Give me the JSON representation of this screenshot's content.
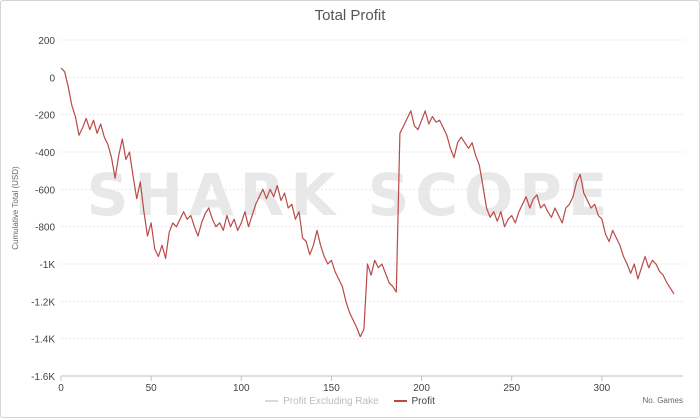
{
  "chart_data": {
    "type": "line",
    "title": "Total Profit",
    "xlabel": "No. Games",
    "ylabel": "Cumulative Total (USD)",
    "xlim": [
      0,
      345
    ],
    "ylim": [
      -1600,
      200
    ],
    "xticks": [
      0,
      50,
      100,
      150,
      200,
      250,
      300
    ],
    "yticks": [
      200,
      0,
      -200,
      -400,
      -600,
      -800,
      -1000,
      -1200,
      -1400,
      -1600
    ],
    "ytick_labels": [
      "200",
      "0",
      "-200",
      "-400",
      "-600",
      "-800",
      "-1K",
      "-1.2K",
      "-1.4K",
      "-1.6K"
    ],
    "grid": true,
    "legend_position": "bottom-center",
    "series": [
      {
        "name": "Profit Excluding Rake",
        "color": "#d9d9d9",
        "hidden": true,
        "points": []
      },
      {
        "name": "Profit",
        "color": "#b94a48",
        "points": [
          [
            0,
            50
          ],
          [
            2,
            30
          ],
          [
            4,
            -50
          ],
          [
            6,
            -150
          ],
          [
            8,
            -210
          ],
          [
            10,
            -310
          ],
          [
            12,
            -270
          ],
          [
            14,
            -220
          ],
          [
            16,
            -280
          ],
          [
            18,
            -230
          ],
          [
            20,
            -300
          ],
          [
            22,
            -250
          ],
          [
            24,
            -320
          ],
          [
            26,
            -360
          ],
          [
            28,
            -430
          ],
          [
            30,
            -540
          ],
          [
            32,
            -420
          ],
          [
            34,
            -330
          ],
          [
            36,
            -440
          ],
          [
            38,
            -400
          ],
          [
            40,
            -530
          ],
          [
            42,
            -650
          ],
          [
            44,
            -560
          ],
          [
            46,
            -720
          ],
          [
            48,
            -850
          ],
          [
            50,
            -780
          ],
          [
            52,
            -920
          ],
          [
            54,
            -960
          ],
          [
            56,
            -900
          ],
          [
            58,
            -970
          ],
          [
            60,
            -830
          ],
          [
            62,
            -780
          ],
          [
            64,
            -800
          ],
          [
            66,
            -760
          ],
          [
            68,
            -720
          ],
          [
            70,
            -760
          ],
          [
            72,
            -740
          ],
          [
            74,
            -800
          ],
          [
            76,
            -850
          ],
          [
            78,
            -780
          ],
          [
            80,
            -730
          ],
          [
            82,
            -700
          ],
          [
            84,
            -760
          ],
          [
            86,
            -800
          ],
          [
            88,
            -780
          ],
          [
            90,
            -820
          ],
          [
            92,
            -740
          ],
          [
            94,
            -800
          ],
          [
            96,
            -760
          ],
          [
            98,
            -820
          ],
          [
            100,
            -780
          ],
          [
            102,
            -720
          ],
          [
            104,
            -800
          ],
          [
            106,
            -740
          ],
          [
            108,
            -680
          ],
          [
            110,
            -640
          ],
          [
            112,
            -600
          ],
          [
            114,
            -650
          ],
          [
            116,
            -600
          ],
          [
            118,
            -640
          ],
          [
            120,
            -580
          ],
          [
            122,
            -660
          ],
          [
            124,
            -620
          ],
          [
            126,
            -700
          ],
          [
            128,
            -680
          ],
          [
            130,
            -760
          ],
          [
            132,
            -720
          ],
          [
            134,
            -860
          ],
          [
            136,
            -880
          ],
          [
            138,
            -950
          ],
          [
            140,
            -900
          ],
          [
            142,
            -820
          ],
          [
            144,
            -900
          ],
          [
            146,
            -960
          ],
          [
            148,
            -1000
          ],
          [
            150,
            -980
          ],
          [
            152,
            -1040
          ],
          [
            154,
            -1080
          ],
          [
            156,
            -1120
          ],
          [
            158,
            -1200
          ],
          [
            160,
            -1260
          ],
          [
            162,
            -1300
          ],
          [
            164,
            -1340
          ],
          [
            166,
            -1390
          ],
          [
            168,
            -1350
          ],
          [
            170,
            -1000
          ],
          [
            172,
            -1060
          ],
          [
            174,
            -980
          ],
          [
            176,
            -1020
          ],
          [
            178,
            -1000
          ],
          [
            180,
            -1050
          ],
          [
            182,
            -1100
          ],
          [
            184,
            -1120
          ],
          [
            186,
            -1150
          ],
          [
            188,
            -300
          ],
          [
            190,
            -260
          ],
          [
            192,
            -220
          ],
          [
            194,
            -180
          ],
          [
            196,
            -260
          ],
          [
            198,
            -280
          ],
          [
            200,
            -230
          ],
          [
            202,
            -180
          ],
          [
            204,
            -250
          ],
          [
            206,
            -210
          ],
          [
            208,
            -240
          ],
          [
            210,
            -230
          ],
          [
            212,
            -270
          ],
          [
            214,
            -310
          ],
          [
            216,
            -380
          ],
          [
            218,
            -430
          ],
          [
            220,
            -350
          ],
          [
            222,
            -320
          ],
          [
            224,
            -350
          ],
          [
            226,
            -380
          ],
          [
            228,
            -350
          ],
          [
            230,
            -420
          ],
          [
            232,
            -470
          ],
          [
            234,
            -580
          ],
          [
            236,
            -700
          ],
          [
            238,
            -750
          ],
          [
            240,
            -720
          ],
          [
            242,
            -770
          ],
          [
            244,
            -720
          ],
          [
            246,
            -800
          ],
          [
            248,
            -760
          ],
          [
            250,
            -740
          ],
          [
            252,
            -780
          ],
          [
            254,
            -720
          ],
          [
            256,
            -680
          ],
          [
            258,
            -640
          ],
          [
            260,
            -700
          ],
          [
            262,
            -650
          ],
          [
            264,
            -630
          ],
          [
            266,
            -700
          ],
          [
            268,
            -680
          ],
          [
            270,
            -720
          ],
          [
            272,
            -750
          ],
          [
            274,
            -700
          ],
          [
            276,
            -740
          ],
          [
            278,
            -780
          ],
          [
            280,
            -700
          ],
          [
            282,
            -680
          ],
          [
            284,
            -640
          ],
          [
            286,
            -560
          ],
          [
            288,
            -520
          ],
          [
            290,
            -620
          ],
          [
            292,
            -660
          ],
          [
            294,
            -700
          ],
          [
            296,
            -680
          ],
          [
            298,
            -740
          ],
          [
            300,
            -760
          ],
          [
            302,
            -840
          ],
          [
            304,
            -880
          ],
          [
            306,
            -820
          ],
          [
            308,
            -860
          ],
          [
            310,
            -900
          ],
          [
            312,
            -960
          ],
          [
            314,
            -1000
          ],
          [
            316,
            -1050
          ],
          [
            318,
            -1000
          ],
          [
            320,
            -1080
          ],
          [
            322,
            -1020
          ],
          [
            324,
            -960
          ],
          [
            326,
            -1020
          ],
          [
            328,
            -980
          ],
          [
            330,
            -1000
          ],
          [
            332,
            -1040
          ],
          [
            334,
            -1060
          ],
          [
            336,
            -1100
          ],
          [
            338,
            -1130
          ],
          [
            340,
            -1160
          ]
        ]
      }
    ]
  },
  "watermark_text": "SHARK SCOPE"
}
